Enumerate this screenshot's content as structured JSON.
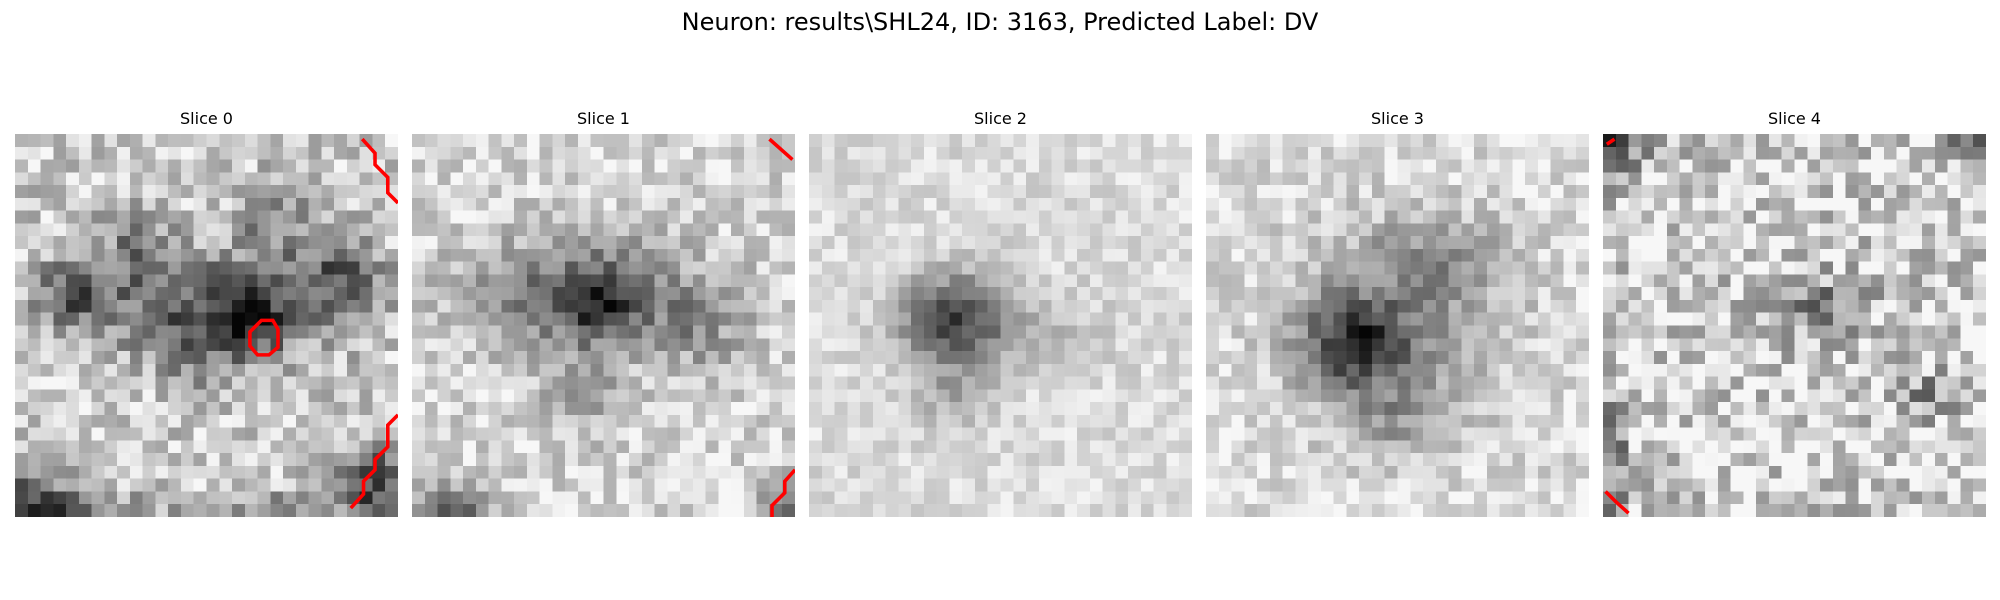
{
  "figure": {
    "title": "Neuron: results\\SHL24, ID: 3163, Predicted Label: DV"
  },
  "panels": [
    {
      "title": "Slice 0",
      "colormap": "gray",
      "overlay_color": "#ff0000"
    },
    {
      "title": "Slice 1",
      "colormap": "gray",
      "overlay_color": "#ff0000"
    },
    {
      "title": "Slice 2",
      "colormap": "gray",
      "overlay_color": "#ff0000"
    },
    {
      "title": "Slice 3",
      "colormap": "gray",
      "overlay_color": "#ff0000"
    },
    {
      "title": "Slice 4",
      "colormap": "gray",
      "overlay_color": "#ff0000"
    }
  ]
}
